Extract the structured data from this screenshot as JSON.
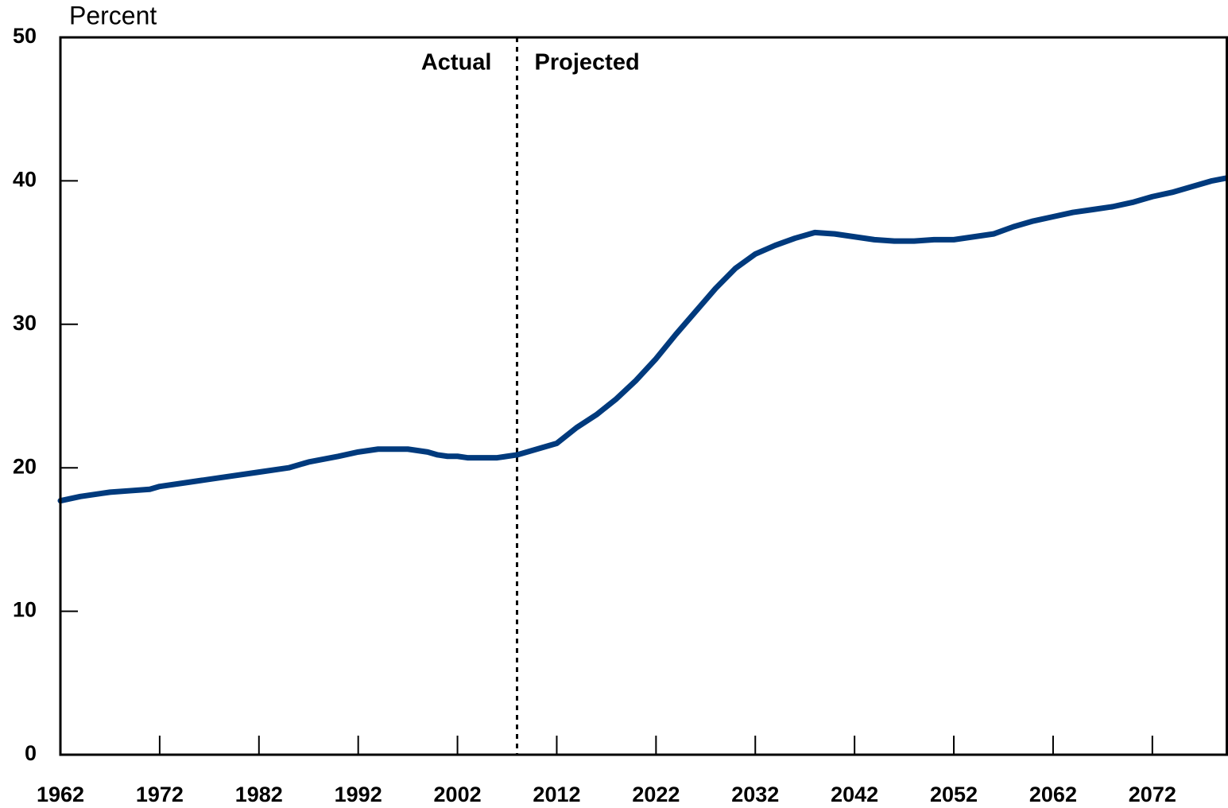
{
  "chart_data": {
    "type": "line",
    "y_label": "Percent",
    "annotations": [
      "Actual",
      "Projected"
    ],
    "divider_x": 2008,
    "x": [
      1962,
      1964,
      1967,
      1969,
      1971,
      1972,
      1975,
      1978,
      1982,
      1985,
      1987,
      1990,
      1992,
      1994,
      1997,
      1999,
      2000,
      2001,
      2002,
      2003,
      2006,
      2008,
      2010,
      2012,
      2014,
      2016,
      2018,
      2020,
      2022,
      2024,
      2026,
      2028,
      2030,
      2032,
      2034,
      2036,
      2038,
      2040,
      2042,
      2044,
      2046,
      2048,
      2050,
      2052,
      2054,
      2056,
      2058,
      2060,
      2062,
      2064,
      2066,
      2068,
      2070,
      2072,
      2074,
      2076,
      2078,
      2079.5
    ],
    "series": [
      {
        "name": "Percent",
        "color": "#003a7d",
        "values": [
          17.7,
          18.0,
          18.3,
          18.4,
          18.5,
          18.7,
          19.0,
          19.3,
          19.7,
          20.0,
          20.4,
          20.8,
          21.1,
          21.3,
          21.3,
          21.1,
          20.9,
          20.8,
          20.8,
          20.7,
          20.7,
          20.9,
          21.3,
          21.7,
          22.8,
          23.7,
          24.8,
          26.1,
          27.6,
          29.3,
          30.9,
          32.5,
          33.9,
          34.9,
          35.5,
          36.0,
          36.4,
          36.3,
          36.1,
          35.9,
          35.8,
          35.8,
          35.9,
          35.9,
          36.1,
          36.3,
          36.8,
          37.2,
          37.5,
          37.8,
          38.0,
          38.2,
          38.5,
          38.9,
          39.2,
          39.6,
          40.0,
          40.2
        ]
      }
    ],
    "xlim": [
      1962,
      2079.5
    ],
    "ylim": [
      0,
      50
    ],
    "xticks": [
      1962,
      1972,
      1982,
      1992,
      2002,
      2012,
      2022,
      2032,
      2042,
      2052,
      2062,
      2072
    ],
    "yticks": [
      0,
      10,
      20,
      30,
      40,
      50
    ]
  }
}
